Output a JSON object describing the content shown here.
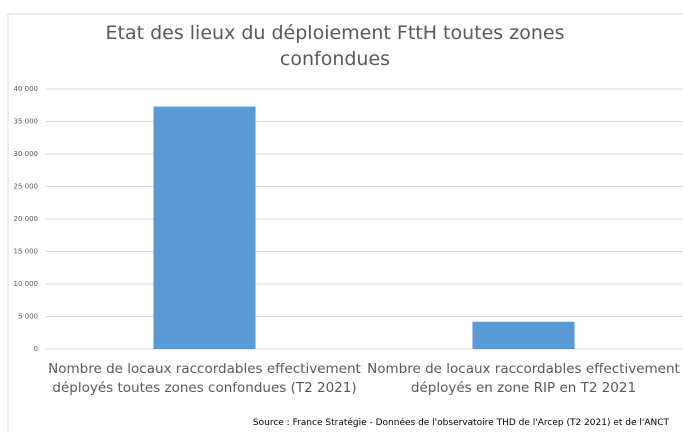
{
  "chart_data": {
    "type": "bar",
    "title": "Etat des lieux du déploiement FttH toutes zones confondues",
    "categories": [
      "Nombre de locaux raccordables effectivement déployés toutes zones confondues (T2 2021)",
      "Nombre de locaux raccordables effectivement déployés en zone RIP en T2 2021"
    ],
    "values": [
      37300,
      4200
    ],
    "color": "#5b9bd5",
    "ylim": [
      0,
      40000
    ],
    "yticks": [
      0,
      {
        "value": 5000,
        "label": "5 000"
      },
      {
        "value": 10000,
        "label": "10 000"
      },
      {
        "value": 15000,
        "label": "15 000"
      },
      {
        "value": 20000,
        "label": "20 000"
      },
      {
        "value": 25000,
        "label": "25 000"
      },
      {
        "value": 30000,
        "label": "30 000"
      },
      {
        "value": 35000,
        "label": "35 000"
      },
      {
        "value": 40000,
        "label": "40 000"
      }
    ],
    "grid": true,
    "source": "Source : France Stratégie - Données de l'observatoire THD de l'Arcep (T2 2021) et de l'ANCT"
  }
}
